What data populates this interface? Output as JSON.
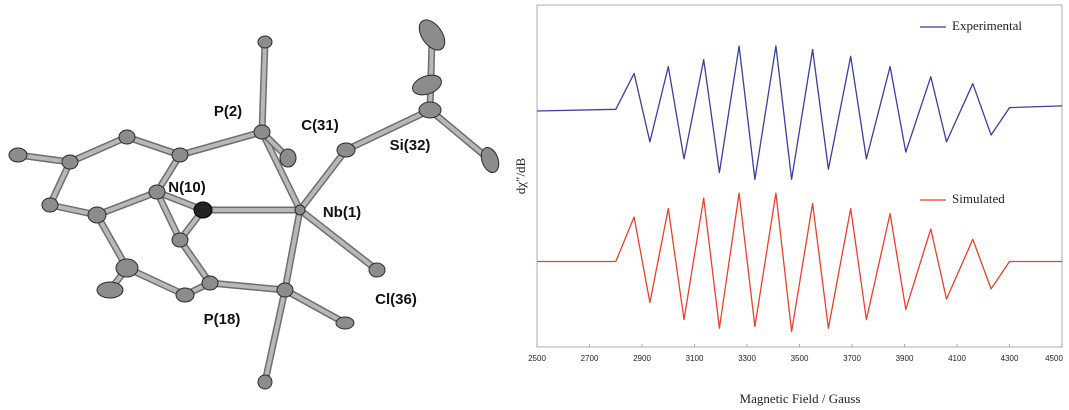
{
  "structure": {
    "labels": [
      "P(2)",
      "C(31)",
      "Si(32)",
      "N(10)",
      "Nb(1)",
      "Cl(36)",
      "P(18)"
    ]
  },
  "chart_data": {
    "type": "line",
    "x_label": "Magnetic Field / Gauss",
    "y_label": "dχ″/dB",
    "x": [
      2500,
      2800,
      2870,
      2930,
      3000,
      3060,
      3135,
      3195,
      3270,
      3330,
      3410,
      3470,
      3550,
      3610,
      3695,
      3755,
      3845,
      3905,
      4000,
      4060,
      4160,
      4230,
      4300,
      4500
    ],
    "series": [
      {
        "name": "Experimental",
        "color": "#3b3f9f",
        "values": [
          69,
          69.5,
          80,
          60,
          82,
          55,
          84,
          51,
          88,
          49,
          88,
          49,
          87,
          52,
          85,
          55,
          82,
          57,
          79,
          60,
          77,
          62,
          70,
          70.5
        ]
      },
      {
        "name": "Simulated",
        "color": "#e8412c",
        "values": [
          25,
          25,
          38,
          13,
          40.5,
          8,
          43.5,
          5.5,
          45,
          6,
          45,
          4.5,
          42,
          5.5,
          40.5,
          8,
          39,
          11,
          34.5,
          14,
          31.5,
          17,
          25,
          25
        ]
      }
    ],
    "xlim": [
      2500,
      4500
    ],
    "ylim": [
      0,
      100
    ],
    "xticks": [
      2500,
      2700,
      2900,
      3100,
      3300,
      3500,
      3700,
      3900,
      4100,
      4300,
      4500
    ]
  }
}
